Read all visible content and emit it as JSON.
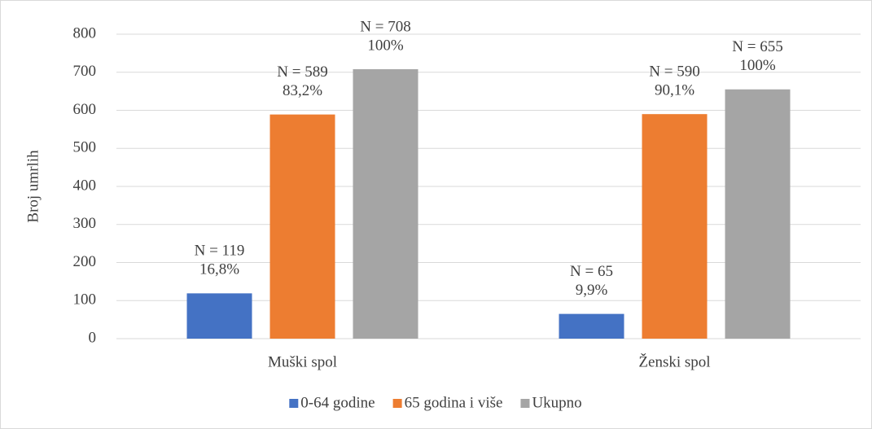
{
  "chart_data": {
    "type": "bar",
    "y_axis_label": "Broj umrlih",
    "categories": [
      "Muški spol",
      "Ženski spol"
    ],
    "series": [
      {
        "name": "0-64 godine",
        "color": "#4472c4",
        "values": [
          119,
          65
        ],
        "value_labels": [
          [
            "N = 119",
            "16,8%"
          ],
          [
            "N = 65",
            "9,9%"
          ]
        ]
      },
      {
        "name": "65 godina i više",
        "color": "#ed7d31",
        "values": [
          589,
          590
        ],
        "value_labels": [
          [
            "N = 589",
            "83,2%"
          ],
          [
            "N = 590",
            "90,1%"
          ]
        ]
      },
      {
        "name": "Ukupno",
        "color": "#a5a5a5",
        "values": [
          708,
          655
        ],
        "value_labels": [
          [
            "N = 708",
            "100%"
          ],
          [
            "N = 655",
            "100%"
          ]
        ]
      }
    ],
    "ylim": [
      0,
      800
    ],
    "yticks": [
      0,
      100,
      200,
      300,
      400,
      500,
      600,
      700,
      800
    ],
    "grid": true,
    "legend": "bottom"
  }
}
